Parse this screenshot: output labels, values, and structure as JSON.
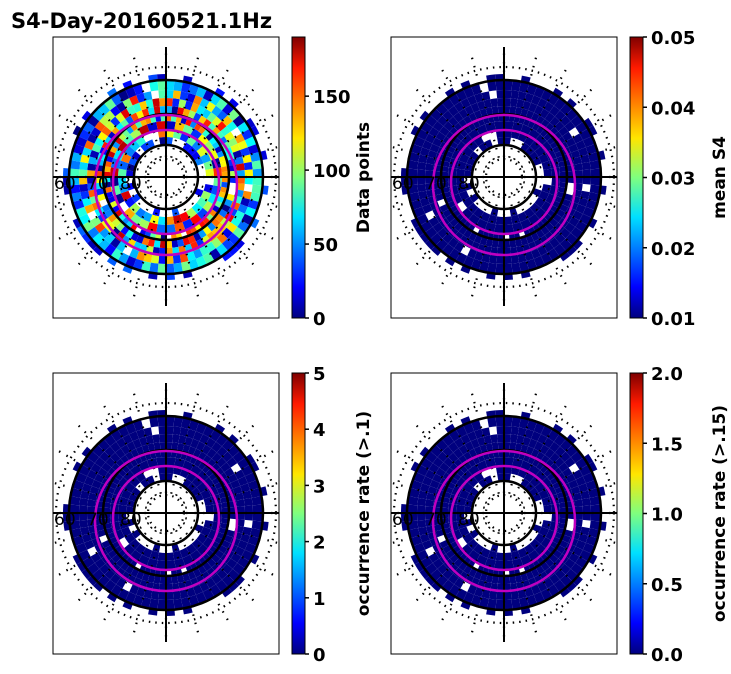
{
  "chart_data": {
    "type": "heatmap",
    "title": "S4-Day-20160521.1Hz",
    "projection": "polar",
    "radial_tick_labels": [
      "60",
      "70",
      "80"
    ],
    "panels": [
      {
        "name": "data-points",
        "colorbar_label": "Data points",
        "clim": [
          0,
          190
        ],
        "ticks": [
          0,
          50,
          100,
          150
        ],
        "tick_labels": [
          "0",
          "50",
          "100",
          "150"
        ],
        "typical_level": "mixed 0-190"
      },
      {
        "name": "mean-s4",
        "colorbar_label": "mean S4",
        "clim": [
          0.01,
          0.05
        ],
        "ticks": [
          0.01,
          0.02,
          0.03,
          0.04,
          0.05
        ],
        "tick_labels": [
          "0.01",
          "0.02",
          "0.03",
          "0.04",
          "0.05"
        ],
        "typical_level": 0.01
      },
      {
        "name": "occurrence-rate-0.1",
        "colorbar_label": "occurrence rate (>.1)",
        "clim": [
          0,
          5
        ],
        "ticks": [
          0,
          1,
          2,
          3,
          4,
          5
        ],
        "tick_labels": [
          "0",
          "1",
          "2",
          "3",
          "4",
          "5"
        ],
        "typical_level": 0
      },
      {
        "name": "occurrence-rate-0.15",
        "colorbar_label": "occurrence rate (>.15)",
        "clim": [
          0,
          2
        ],
        "ticks": [
          0,
          0.5,
          1,
          1.5,
          2
        ],
        "tick_labels": [
          "0.0",
          "0.5",
          "1.0",
          "1.5",
          "2.0"
        ],
        "typical_level": 0
      }
    ],
    "colormap": "jet",
    "overlay_color": "#c000c0"
  }
}
